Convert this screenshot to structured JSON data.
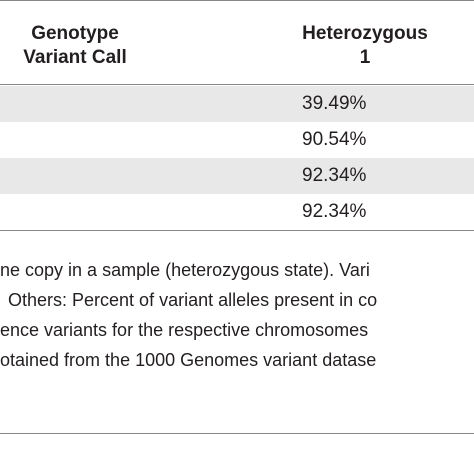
{
  "table": {
    "header": [
      [
        "Genotype",
        "Variant Call"
      ],
      [
        "Heterozygous",
        "1"
      ]
    ],
    "rows": [
      "39.49%",
      "90.54%",
      "92.34%",
      "92.34%"
    ]
  },
  "footnotes": [
    "ne copy in a sample (heterozygous state). Vari",
    "Others: Percent of variant alleles present in co",
    "ence variants for the respective chromosomes",
    "otained from the 1000 Genomes variant datase"
  ]
}
